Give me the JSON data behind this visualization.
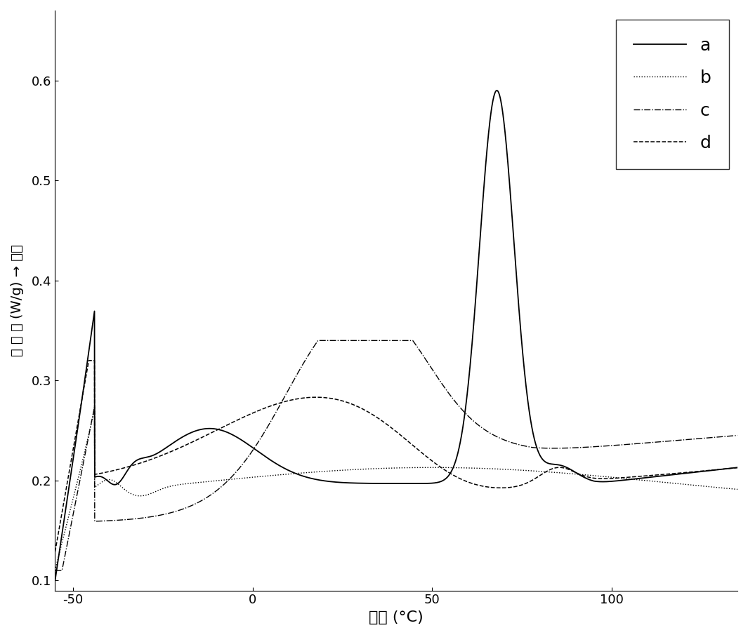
{
  "xlabel": "温度 (°C)",
  "ylabel": "热 流 量 (W/g) → 吸热",
  "xlim": [
    -55,
    135
  ],
  "ylim": [
    0.09,
    0.67
  ],
  "xticks": [
    -50,
    0,
    50,
    100
  ],
  "yticks": [
    0.1,
    0.2,
    0.3,
    0.4,
    0.5,
    0.6
  ],
  "legend_labels": [
    "a",
    "b",
    "c",
    "d"
  ],
  "line_styles": [
    "solid",
    "dotted",
    "dashdot",
    "dashed"
  ],
  "background_color": "#ffffff"
}
